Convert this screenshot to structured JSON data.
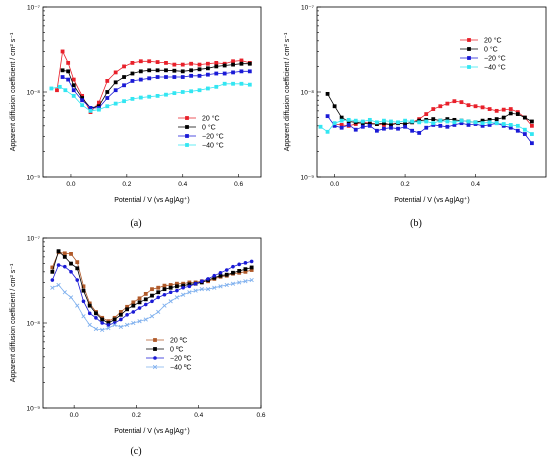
{
  "chart_data": [
    {
      "type": "line",
      "panel_label": "(a)",
      "xlabel": "Potential / V (vs Ag|Ag⁺)",
      "ylabel": "Apparent diffusion coefficient / cm² s⁻¹",
      "xlim": [
        -0.1,
        0.68
      ],
      "xticks": [
        0.0,
        0.2,
        0.4,
        0.6
      ],
      "xtick_labels": [
        "0.0",
        "0.2",
        "0.4",
        "0.6"
      ],
      "ylim": [
        1e-09,
        1e-07
      ],
      "yscale": "log",
      "yticks": [
        1e-09,
        1e-08,
        1e-07
      ],
      "ytick_labels": [
        "10⁻⁹",
        "10⁻⁸",
        "10⁻⁷"
      ],
      "legend_position": "right",
      "series": [
        {
          "name": "20 °C",
          "color": "#e8202a",
          "marker": "square",
          "x": [
            -0.05,
            -0.03,
            -0.01,
            0.01,
            0.04,
            0.07,
            0.1,
            0.13,
            0.16,
            0.19,
            0.22,
            0.25,
            0.28,
            0.31,
            0.34,
            0.37,
            0.4,
            0.43,
            0.46,
            0.49,
            0.52,
            0.55,
            0.58,
            0.61,
            0.64
          ],
          "y": [
            1.05e-08,
            3e-08,
            2.2e-08,
            1.4e-08,
            9e-09,
            5.8e-09,
            7.5e-09,
            1.35e-08,
            1.7e-08,
            2e-08,
            2.2e-08,
            2.3e-08,
            2.3e-08,
            2.25e-08,
            2.2e-08,
            2.1e-08,
            2.1e-08,
            2.15e-08,
            2.1e-08,
            2.15e-08,
            2.2e-08,
            2.15e-08,
            2.3e-08,
            2.35e-08,
            2.2e-08
          ]
        },
        {
          "name": "0 °C",
          "color": "#000000",
          "marker": "square",
          "x": [
            -0.03,
            -0.01,
            0.01,
            0.04,
            0.07,
            0.1,
            0.13,
            0.16,
            0.19,
            0.22,
            0.25,
            0.28,
            0.31,
            0.34,
            0.37,
            0.4,
            0.43,
            0.46,
            0.49,
            0.52,
            0.55,
            0.58,
            0.61,
            0.64
          ],
          "y": [
            1.8e-08,
            1.75e-08,
            1.2e-08,
            8.5e-09,
            6.5e-09,
            6.8e-09,
            1e-08,
            1.3e-08,
            1.5e-08,
            1.65e-08,
            1.75e-08,
            1.8e-08,
            1.8e-08,
            1.8e-08,
            1.78e-08,
            1.75e-08,
            1.8e-08,
            1.85e-08,
            1.9e-08,
            2e-08,
            2.05e-08,
            2.1e-08,
            2.15e-08,
            2.15e-08
          ]
        },
        {
          "name": "−20 °C",
          "color": "#1a1ad6",
          "marker": "square",
          "x": [
            -0.03,
            -0.01,
            0.01,
            0.04,
            0.07,
            0.1,
            0.13,
            0.16,
            0.19,
            0.22,
            0.25,
            0.28,
            0.31,
            0.34,
            0.37,
            0.4,
            0.43,
            0.46,
            0.49,
            0.52,
            0.55,
            0.58,
            0.61,
            0.64
          ],
          "y": [
            1.5e-08,
            1.4e-08,
            1.05e-08,
            8e-09,
            6.5e-09,
            6.5e-09,
            8.5e-09,
            1.05e-08,
            1.2e-08,
            1.35e-08,
            1.4e-08,
            1.45e-08,
            1.5e-08,
            1.5e-08,
            1.5e-08,
            1.5e-08,
            1.55e-08,
            1.55e-08,
            1.6e-08,
            1.65e-08,
            1.65e-08,
            1.7e-08,
            1.75e-08,
            1.75e-08
          ]
        },
        {
          "name": "−40 °C",
          "color": "#33e6f2",
          "marker": "square",
          "x": [
            -0.07,
            -0.04,
            -0.02,
            0.01,
            0.04,
            0.07,
            0.1,
            0.13,
            0.16,
            0.19,
            0.22,
            0.25,
            0.28,
            0.31,
            0.34,
            0.37,
            0.4,
            0.43,
            0.46,
            0.49,
            0.52,
            0.55,
            0.58,
            0.61,
            0.64
          ],
          "y": [
            1.1e-08,
            1.15e-08,
            1.05e-08,
            9e-09,
            7e-09,
            6e-09,
            6.2e-09,
            6.8e-09,
            7.3e-09,
            7.8e-09,
            8.3e-09,
            8.6e-09,
            8.8e-09,
            9e-09,
            9.3e-09,
            9.7e-09,
            1e-08,
            1.02e-08,
            1.05e-08,
            1.1e-08,
            1.15e-08,
            1.25e-08,
            1.25e-08,
            1.25e-08,
            1.22e-08
          ]
        }
      ]
    },
    {
      "type": "line",
      "panel_label": "(b)",
      "xlabel": "Potential / V (vs Ag|Ag⁺)",
      "ylabel": "Apparent diffusion coefficient / cm² s⁻¹",
      "xlim": [
        -0.05,
        0.6
      ],
      "xticks": [
        0.0,
        0.2,
        0.4
      ],
      "xtick_labels": [
        "0.0",
        "0.2",
        "0.4"
      ],
      "ylim": [
        1e-09,
        1e-07
      ],
      "yscale": "log",
      "yticks": [
        1e-09,
        1e-08,
        1e-07
      ],
      "ytick_labels": [
        "10⁻⁹",
        "10⁻⁸",
        "10⁻⁷"
      ],
      "legend_position": "top-right",
      "series": [
        {
          "name": "20 °C",
          "color": "#e8202a",
          "marker": "square",
          "x": [
            0.0,
            0.02,
            0.04,
            0.06,
            0.08,
            0.1,
            0.12,
            0.14,
            0.16,
            0.18,
            0.2,
            0.22,
            0.24,
            0.26,
            0.28,
            0.3,
            0.32,
            0.34,
            0.36,
            0.38,
            0.4,
            0.42,
            0.44,
            0.46,
            0.48,
            0.5,
            0.52,
            0.54,
            0.56
          ],
          "y": [
            4.2e-09,
            4.1e-09,
            4e-09,
            4.2e-09,
            4.4e-09,
            4.3e-09,
            4.2e-09,
            4.1e-09,
            4.2e-09,
            4.3e-09,
            4.2e-09,
            4.4e-09,
            4.8e-09,
            5.5e-09,
            6.3e-09,
            6.8e-09,
            7.3e-09,
            7.8e-09,
            7.6e-09,
            7e-09,
            6.8e-09,
            6.6e-09,
            6.3e-09,
            6e-09,
            6.2e-09,
            6.3e-09,
            5.8e-09,
            5e-09,
            4e-09
          ]
        },
        {
          "name": "0 °C",
          "color": "#000000",
          "marker": "square",
          "x": [
            -0.02,
            0.0,
            0.02,
            0.04,
            0.06,
            0.08,
            0.1,
            0.12,
            0.14,
            0.16,
            0.18,
            0.2,
            0.22,
            0.24,
            0.26,
            0.28,
            0.3,
            0.32,
            0.34,
            0.36,
            0.38,
            0.4,
            0.42,
            0.44,
            0.46,
            0.48,
            0.5,
            0.52,
            0.54,
            0.56
          ],
          "y": [
            9.5e-09,
            6.8e-09,
            5e-09,
            4.5e-09,
            4.4e-09,
            4.3e-09,
            4.2e-09,
            4.2e-09,
            4.3e-09,
            4.1e-09,
            4.3e-09,
            4.2e-09,
            4.4e-09,
            4.6e-09,
            4.7e-09,
            4.8e-09,
            4.6e-09,
            4.8e-09,
            4.7e-09,
            4.6e-09,
            4.5e-09,
            4.4e-09,
            4.6e-09,
            4.7e-09,
            4.8e-09,
            5e-09,
            5.6e-09,
            5.5e-09,
            5e-09,
            4.5e-09
          ]
        },
        {
          "name": "−20 °C",
          "color": "#1a1ad6",
          "marker": "square",
          "x": [
            -0.02,
            0.0,
            0.02,
            0.04,
            0.06,
            0.08,
            0.1,
            0.12,
            0.14,
            0.16,
            0.18,
            0.2,
            0.22,
            0.24,
            0.26,
            0.28,
            0.3,
            0.32,
            0.34,
            0.36,
            0.38,
            0.4,
            0.42,
            0.44,
            0.46,
            0.48,
            0.5,
            0.52,
            0.54,
            0.56
          ],
          "y": [
            5.2e-09,
            4e-09,
            3.8e-09,
            4.1e-09,
            3.6e-09,
            3.9e-09,
            4e-09,
            3.5e-09,
            3.7e-09,
            3.8e-09,
            3.7e-09,
            3.9e-09,
            3.5e-09,
            3.3e-09,
            3.8e-09,
            4.1e-09,
            4e-09,
            3.9e-09,
            4.1e-09,
            4.3e-09,
            4.1e-09,
            4.2e-09,
            4e-09,
            4.1e-09,
            4.3e-09,
            4e-09,
            3.8e-09,
            3.5e-09,
            3.2e-09,
            2.5e-09
          ]
        },
        {
          "name": "−40 °C",
          "color": "#33e6f2",
          "marker": "square",
          "x": [
            -0.04,
            -0.02,
            0.0,
            0.02,
            0.04,
            0.06,
            0.08,
            0.1,
            0.12,
            0.14,
            0.16,
            0.18,
            0.2,
            0.22,
            0.24,
            0.26,
            0.28,
            0.3,
            0.32,
            0.34,
            0.36,
            0.38,
            0.4,
            0.42,
            0.44,
            0.46,
            0.48,
            0.5,
            0.52,
            0.54,
            0.56
          ],
          "y": [
            3.9e-09,
            3.4e-09,
            4.3e-09,
            4.6e-09,
            4.7e-09,
            4.6e-09,
            4.5e-09,
            4.7e-09,
            4.4e-09,
            4.6e-09,
            4.5e-09,
            4.4e-09,
            4.6e-09,
            4.5e-09,
            4.4e-09,
            4.5e-09,
            4.3e-09,
            4.6e-09,
            4.5e-09,
            4.4e-09,
            4.6e-09,
            4.5e-09,
            4.4e-09,
            4.3e-09,
            4.4e-09,
            4.3e-09,
            4.2e-09,
            4.1e-09,
            4e-09,
            3.6e-09,
            3.2e-09
          ]
        }
      ]
    },
    {
      "type": "line",
      "panel_label": "(c)",
      "xlabel": "Potential / V (vs Ag|Ag⁺)",
      "ylabel": "Apparent diffusion coefficient / cm² s⁻¹",
      "xlim": [
        -0.1,
        0.6
      ],
      "xticks": [
        0.0,
        0.2,
        0.4,
        0.6
      ],
      "xtick_labels": [
        "0.0",
        "0.2",
        "0.4",
        "0.6"
      ],
      "ylim": [
        1e-09,
        1e-07
      ],
      "yscale": "log",
      "yticks": [
        1e-09,
        1e-08,
        1e-07
      ],
      "ytick_labels": [
        "10⁻⁹",
        "10⁻⁸",
        "10⁻⁷"
      ],
      "legend_position": "center",
      "series": [
        {
          "name": "20 ºC",
          "color": "#b05a2a",
          "marker": "square",
          "x": [
            -0.07,
            -0.05,
            -0.03,
            -0.01,
            0.01,
            0.03,
            0.05,
            0.07,
            0.09,
            0.11,
            0.13,
            0.15,
            0.17,
            0.19,
            0.21,
            0.23,
            0.25,
            0.27,
            0.29,
            0.31,
            0.33,
            0.35,
            0.37,
            0.39,
            0.41,
            0.43,
            0.45,
            0.47,
            0.49,
            0.51,
            0.53,
            0.55,
            0.57
          ],
          "y": [
            4.5e-08,
            6.8e-08,
            6.6e-08,
            6.5e-08,
            5.2e-08,
            2.7e-08,
            1.7e-08,
            1.35e-08,
            1.15e-08,
            1.05e-08,
            1.15e-08,
            1.35e-08,
            1.55e-08,
            1.75e-08,
            1.95e-08,
            2.2e-08,
            2.5e-08,
            2.6e-08,
            2.75e-08,
            2.8e-08,
            2.9e-08,
            2.9e-08,
            3e-08,
            3e-08,
            3.1e-08,
            3.1e-08,
            3.3e-08,
            3.5e-08,
            3.6e-08,
            3.8e-08,
            3.9e-08,
            4e-08,
            4.2e-08
          ]
        },
        {
          "name": "0 ºC",
          "color": "#000000",
          "marker": "square",
          "x": [
            -0.07,
            -0.05,
            -0.03,
            -0.01,
            0.01,
            0.03,
            0.05,
            0.07,
            0.09,
            0.11,
            0.13,
            0.15,
            0.17,
            0.19,
            0.21,
            0.23,
            0.25,
            0.27,
            0.29,
            0.31,
            0.33,
            0.35,
            0.37,
            0.39,
            0.41,
            0.43,
            0.45,
            0.47,
            0.49,
            0.51,
            0.53,
            0.55,
            0.57
          ],
          "y": [
            4e-08,
            7e-08,
            6e-08,
            5e-08,
            4.4e-08,
            2.4e-08,
            1.6e-08,
            1.3e-08,
            1.1e-08,
            1e-08,
            1.1e-08,
            1.25e-08,
            1.45e-08,
            1.6e-08,
            1.75e-08,
            1.9e-08,
            2.1e-08,
            2.3e-08,
            2.5e-08,
            2.6e-08,
            2.7e-08,
            2.75e-08,
            2.85e-08,
            2.9e-08,
            3e-08,
            3.2e-08,
            3.4e-08,
            3.6e-08,
            3.7e-08,
            3.9e-08,
            4.1e-08,
            4.3e-08,
            4.5e-08
          ]
        },
        {
          "name": "−20 ºC",
          "color": "#1a1ad6",
          "marker": "circle",
          "x": [
            -0.07,
            -0.05,
            -0.03,
            -0.01,
            0.01,
            0.03,
            0.05,
            0.07,
            0.09,
            0.11,
            0.13,
            0.15,
            0.17,
            0.19,
            0.21,
            0.23,
            0.25,
            0.27,
            0.29,
            0.31,
            0.33,
            0.35,
            0.37,
            0.39,
            0.41,
            0.43,
            0.45,
            0.47,
            0.49,
            0.51,
            0.53,
            0.55,
            0.57
          ],
          "y": [
            3.2e-08,
            4.8e-08,
            4.6e-08,
            4e-08,
            3.2e-08,
            1.8e-08,
            1.3e-08,
            1.15e-08,
            1e-08,
            9.5e-09,
            1e-08,
            1.1e-08,
            1.25e-08,
            1.35e-08,
            1.5e-08,
            1.65e-08,
            1.8e-08,
            2e-08,
            2.15e-08,
            2.3e-08,
            2.4e-08,
            2.6e-08,
            2.7e-08,
            2.9e-08,
            3.1e-08,
            3.3e-08,
            3.6e-08,
            3.9e-08,
            4.2e-08,
            4.6e-08,
            4.9e-08,
            5.1e-08,
            5.3e-08
          ]
        },
        {
          "name": "−40 ºC",
          "color": "#7fb0ee",
          "marker": "x",
          "x": [
            -0.07,
            -0.05,
            -0.03,
            -0.01,
            0.01,
            0.03,
            0.05,
            0.07,
            0.09,
            0.11,
            0.13,
            0.15,
            0.17,
            0.19,
            0.21,
            0.23,
            0.25,
            0.27,
            0.29,
            0.31,
            0.33,
            0.35,
            0.37,
            0.39,
            0.41,
            0.43,
            0.45,
            0.47,
            0.49,
            0.51,
            0.53,
            0.55,
            0.57
          ],
          "y": [
            2.6e-08,
            2.8e-08,
            2.3e-08,
            2e-08,
            1.6e-08,
            1.2e-08,
            9.5e-09,
            8.5e-09,
            8.3e-09,
            8.7e-09,
            9.5e-09,
            9e-09,
            9.5e-09,
            1e-08,
            1.05e-08,
            1.1e-08,
            1.2e-08,
            1.35e-08,
            1.6e-08,
            1.8e-08,
            2e-08,
            2.15e-08,
            2.3e-08,
            2.4e-08,
            2.5e-08,
            2.5e-08,
            2.6e-08,
            2.7e-08,
            2.8e-08,
            2.9e-08,
            3e-08,
            3.1e-08,
            3.2e-08
          ]
        }
      ]
    }
  ]
}
